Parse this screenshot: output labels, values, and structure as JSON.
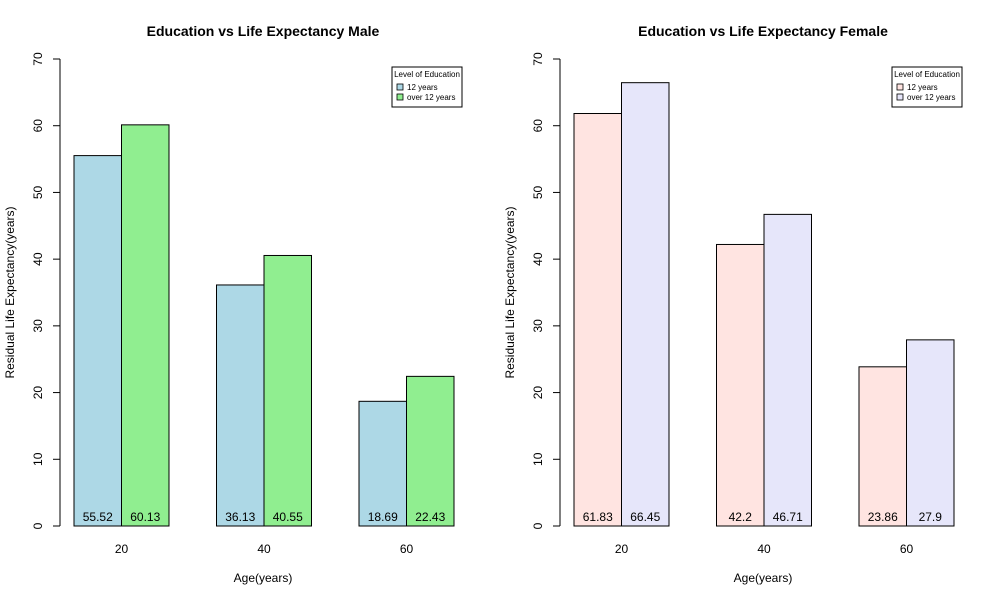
{
  "chart_data": [
    {
      "type": "bar",
      "title": "Education vs Life Expectancy Male",
      "xlabel": "Age(years)",
      "ylabel": "Residual Life Expectancy(years)",
      "categories": [
        "20",
        "40",
        "60"
      ],
      "ylim": [
        0,
        70
      ],
      "yticks": [
        "0",
        "10",
        "20",
        "30",
        "40",
        "50",
        "60",
        "70"
      ],
      "grid": false,
      "legend": {
        "title": "Level of Education",
        "position": "top-right",
        "entries": [
          "12 years",
          "over 12 years"
        ]
      },
      "series": [
        {
          "name": "12 years",
          "color": "#add8e6",
          "values": [
            55.52,
            36.13,
            18.69
          ],
          "labels": [
            "55.52",
            "36.13",
            "18.69"
          ]
        },
        {
          "name": "over 12 years",
          "color": "#90ee90",
          "values": [
            60.13,
            40.55,
            22.43
          ],
          "labels": [
            "60.13",
            "40.55",
            "22.43"
          ]
        }
      ]
    },
    {
      "type": "bar",
      "title": "Education vs Life Expectancy Female",
      "xlabel": "Age(years)",
      "ylabel": "Residual Life Expectancy(years)",
      "categories": [
        "20",
        "40",
        "60"
      ],
      "ylim": [
        0,
        70
      ],
      "yticks": [
        "0",
        "10",
        "20",
        "30",
        "40",
        "50",
        "60",
        "70"
      ],
      "grid": false,
      "legend": {
        "title": "Level of Education",
        "position": "top-right",
        "entries": [
          "12 years",
          "over 12 years"
        ]
      },
      "series": [
        {
          "name": "12 years",
          "color": "#ffe4e1",
          "values": [
            61.83,
            42.2,
            23.86
          ],
          "labels": [
            "61.83",
            "42.2",
            "23.86"
          ]
        },
        {
          "name": "over 12 years",
          "color": "#e6e6fa",
          "values": [
            66.45,
            46.71,
            27.9
          ],
          "labels": [
            "66.45",
            "46.71",
            "27.9"
          ]
        }
      ]
    }
  ]
}
